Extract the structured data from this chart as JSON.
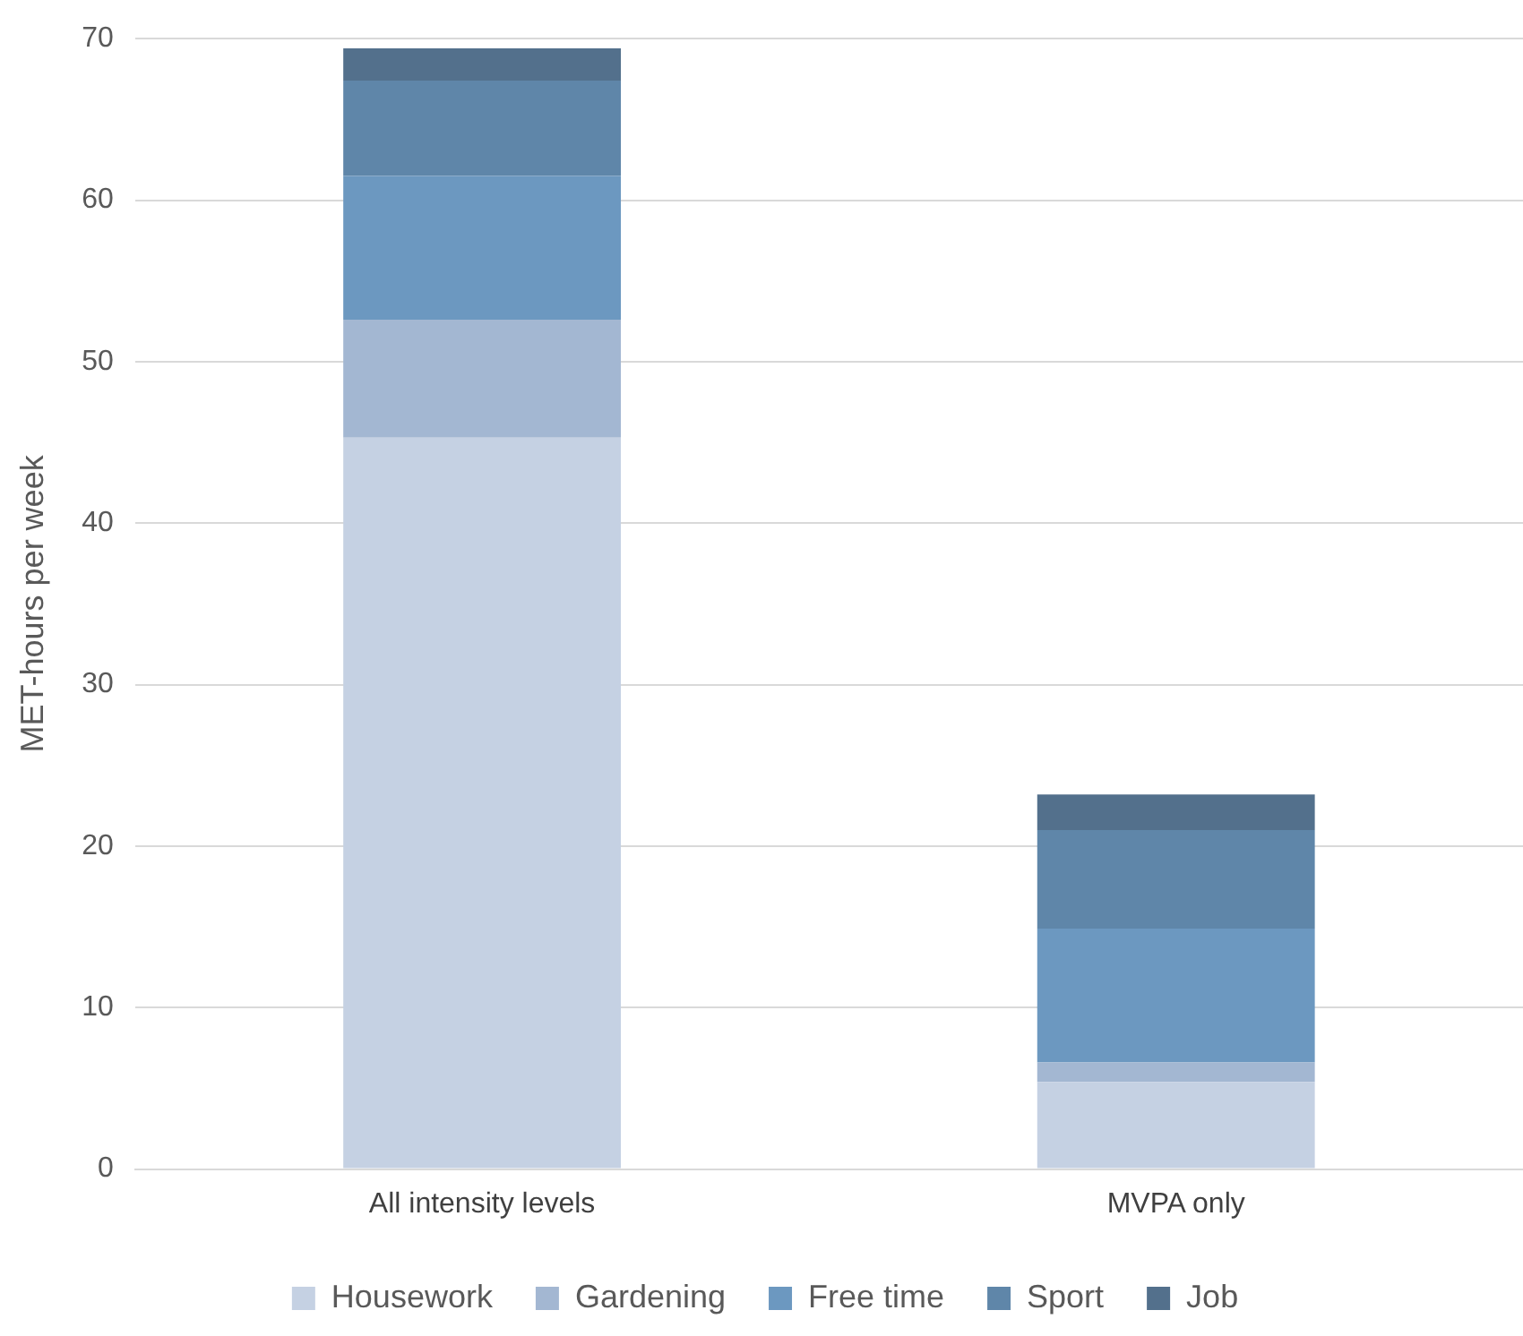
{
  "chart_data": {
    "type": "bar",
    "stacked": true,
    "ylabel": "MET-hours per week",
    "categories": [
      "All intensity levels",
      "MVPA only"
    ],
    "series": [
      {
        "name": "Housework",
        "color": "#c5d1e3",
        "values": [
          45.3,
          5.4
        ]
      },
      {
        "name": "Gardening",
        "color": "#a3b7d2",
        "values": [
          7.3,
          1.2
        ]
      },
      {
        "name": "Free time",
        "color": "#6c98c0",
        "values": [
          8.9,
          8.3
        ]
      },
      {
        "name": "Sport",
        "color": "#5f86a9",
        "values": [
          5.9,
          6.1
        ]
      },
      {
        "name": "Job",
        "color": "#53708c",
        "values": [
          2.0,
          2.2
        ]
      }
    ],
    "ylim": [
      0,
      70
    ],
    "yticks": [
      0,
      10,
      20,
      30,
      40,
      50,
      60,
      70
    ],
    "grid": "y",
    "legend": "bottom"
  }
}
